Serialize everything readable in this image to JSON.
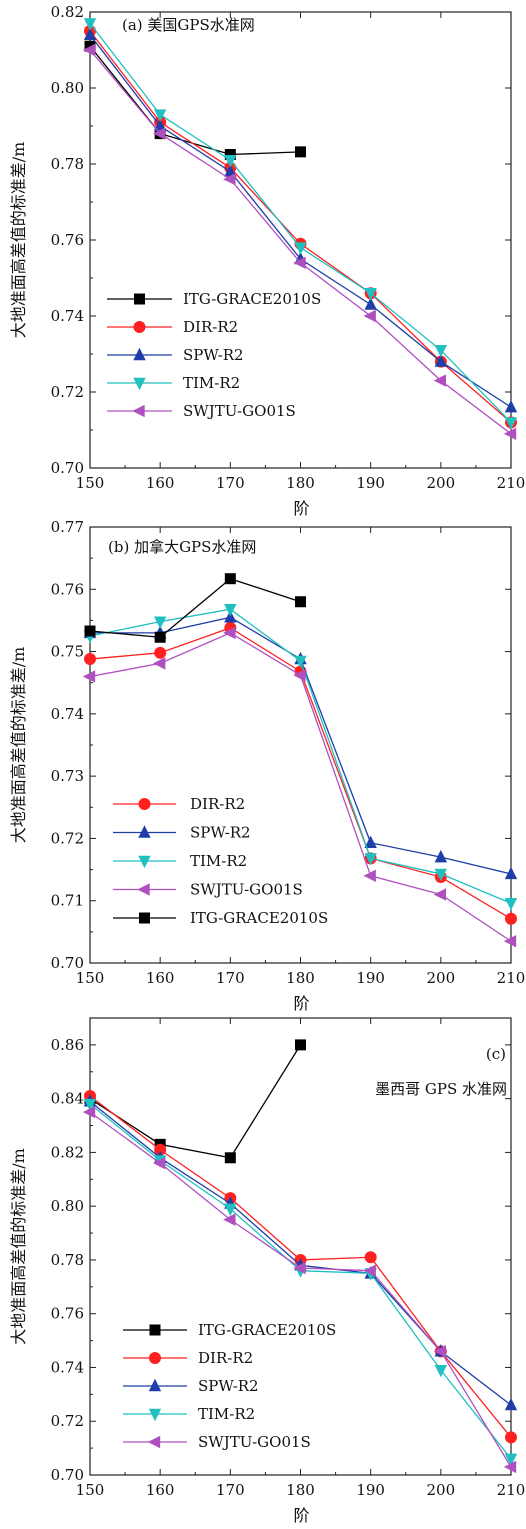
{
  "chart_data": [
    {
      "type": "line",
      "title": "(a) 美国GPS水准网",
      "xlabel": "阶",
      "ylabel": "大地准面高差值的标准差/m",
      "x_ticks": [
        "150",
        "160",
        "170",
        "180",
        "190",
        "200",
        "210"
      ],
      "y_ticks": [
        "0.70",
        "0.72",
        "0.74",
        "0.76",
        "0.78",
        "0.80",
        "0.82"
      ],
      "xlim": [
        150,
        210
      ],
      "ylim": [
        0.7,
        0.82
      ],
      "legend_position": "lower-left",
      "series": [
        {
          "name": "ITG-GRACE2010S",
          "color": "#000000",
          "marker": "square",
          "x": [
            150,
            160,
            170,
            180
          ],
          "y": [
            0.811,
            0.788,
            0.7825,
            0.7832
          ]
        },
        {
          "name": "DIR-R2",
          "color": "#ff2020",
          "marker": "circle",
          "x": [
            150,
            160,
            170,
            180,
            190,
            200,
            210
          ],
          "y": [
            0.815,
            0.791,
            0.779,
            0.759,
            0.746,
            0.728,
            0.712
          ]
        },
        {
          "name": "SPW-R2",
          "color": "#1f3ea8",
          "marker": "triangle-up",
          "x": [
            150,
            160,
            170,
            180,
            190,
            200,
            210
          ],
          "y": [
            0.814,
            0.79,
            0.778,
            0.755,
            0.743,
            0.728,
            0.716
          ]
        },
        {
          "name": "TIM-R2",
          "color": "#20c0c0",
          "marker": "triangle-down",
          "x": [
            150,
            160,
            170,
            180,
            190,
            200,
            210
          ],
          "y": [
            0.817,
            0.793,
            0.781,
            0.758,
            0.746,
            0.731,
            0.712
          ]
        },
        {
          "name": "SWJTU-GO01S",
          "color": "#b050c0",
          "marker": "triangle-left",
          "x": [
            150,
            160,
            170,
            180,
            190,
            200,
            210
          ],
          "y": [
            0.81,
            0.788,
            0.776,
            0.754,
            0.74,
            0.723,
            0.709
          ]
        }
      ]
    },
    {
      "type": "line",
      "title": "(b) 加拿大GPS水准网",
      "xlabel": "阶",
      "ylabel": "大地准面高差值的标准差/m",
      "x_ticks": [
        "150",
        "160",
        "170",
        "180",
        "190",
        "200",
        "210"
      ],
      "y_ticks": [
        "0.70",
        "0.71",
        "0.72",
        "0.73",
        "0.74",
        "0.75",
        "0.76",
        "0.77"
      ],
      "xlim": [
        150,
        210
      ],
      "ylim": [
        0.7,
        0.77
      ],
      "legend_position": "lower-left",
      "series": [
        {
          "name": "DIR-R2",
          "color": "#ff2020",
          "marker": "circle",
          "x": [
            150,
            160,
            170,
            180,
            190,
            200,
            210
          ],
          "y": [
            0.7488,
            0.7498,
            0.7538,
            0.7468,
            0.7168,
            0.7138,
            0.7071
          ]
        },
        {
          "name": "SPW-R2",
          "color": "#1f3ea8",
          "marker": "triangle-up",
          "x": [
            150,
            160,
            170,
            180,
            190,
            200,
            210
          ],
          "y": [
            0.753,
            0.753,
            0.7555,
            0.7488,
            0.7193,
            0.717,
            0.7143
          ]
        },
        {
          "name": "TIM-R2",
          "color": "#20c0c0",
          "marker": "triangle-down",
          "x": [
            150,
            160,
            170,
            180,
            190,
            200,
            210
          ],
          "y": [
            0.7525,
            0.7548,
            0.7568,
            0.7485,
            0.7168,
            0.7143,
            0.7096
          ]
        },
        {
          "name": "SWJTU-GO01S",
          "color": "#b050c0",
          "marker": "triangle-left",
          "x": [
            150,
            160,
            170,
            180,
            190,
            200,
            210
          ],
          "y": [
            0.746,
            0.7481,
            0.753,
            0.7462,
            0.714,
            0.711,
            0.7035
          ]
        },
        {
          "name": "ITG-GRACE2010S",
          "color": "#000000",
          "marker": "square",
          "x": [
            150,
            160,
            170,
            180
          ],
          "y": [
            0.7533,
            0.7523,
            0.7617,
            0.758
          ]
        }
      ]
    },
    {
      "type": "line",
      "title": "墨西哥 GPS 水准网",
      "panel_label": "(c)",
      "xlabel": "阶",
      "ylabel": "大地准面高差值的标准差/m",
      "x_ticks": [
        "150",
        "160",
        "170",
        "180",
        "190",
        "200",
        "210"
      ],
      "y_ticks": [
        "0.70",
        "0.72",
        "0.74",
        "0.76",
        "0.78",
        "0.80",
        "0.82",
        "0.84",
        "0.86"
      ],
      "xlim": [
        150,
        210
      ],
      "ylim": [
        0.7,
        0.87
      ],
      "legend_position": "lower-left",
      "series": [
        {
          "name": "ITG-GRACE2010S",
          "color": "#000000",
          "marker": "square",
          "x": [
            150,
            160,
            170,
            180
          ],
          "y": [
            0.84,
            0.823,
            0.818,
            0.86
          ]
        },
        {
          "name": "DIR-R2",
          "color": "#ff2020",
          "marker": "circle",
          "x": [
            150,
            160,
            170,
            180,
            190,
            200,
            210
          ],
          "y": [
            0.841,
            0.821,
            0.803,
            0.78,
            0.781,
            0.746,
            0.714
          ]
        },
        {
          "name": "SPW-R2",
          "color": "#1f3ea8",
          "marker": "triangle-up",
          "x": [
            150,
            160,
            170,
            180,
            190,
            200,
            210
          ],
          "y": [
            0.839,
            0.818,
            0.801,
            0.778,
            0.775,
            0.746,
            0.726
          ]
        },
        {
          "name": "TIM-R2",
          "color": "#20c0c0",
          "marker": "triangle-down",
          "x": [
            150,
            160,
            170,
            180,
            190,
            200,
            210
          ],
          "y": [
            0.838,
            0.817,
            0.799,
            0.776,
            0.775,
            0.739,
            0.706
          ]
        },
        {
          "name": "SWJTU-GO01S",
          "color": "#b050c0",
          "marker": "triangle-left",
          "x": [
            150,
            160,
            170,
            180,
            190,
            200,
            210
          ],
          "y": [
            0.835,
            0.816,
            0.795,
            0.777,
            0.776,
            0.746,
            0.703
          ]
        }
      ]
    }
  ]
}
